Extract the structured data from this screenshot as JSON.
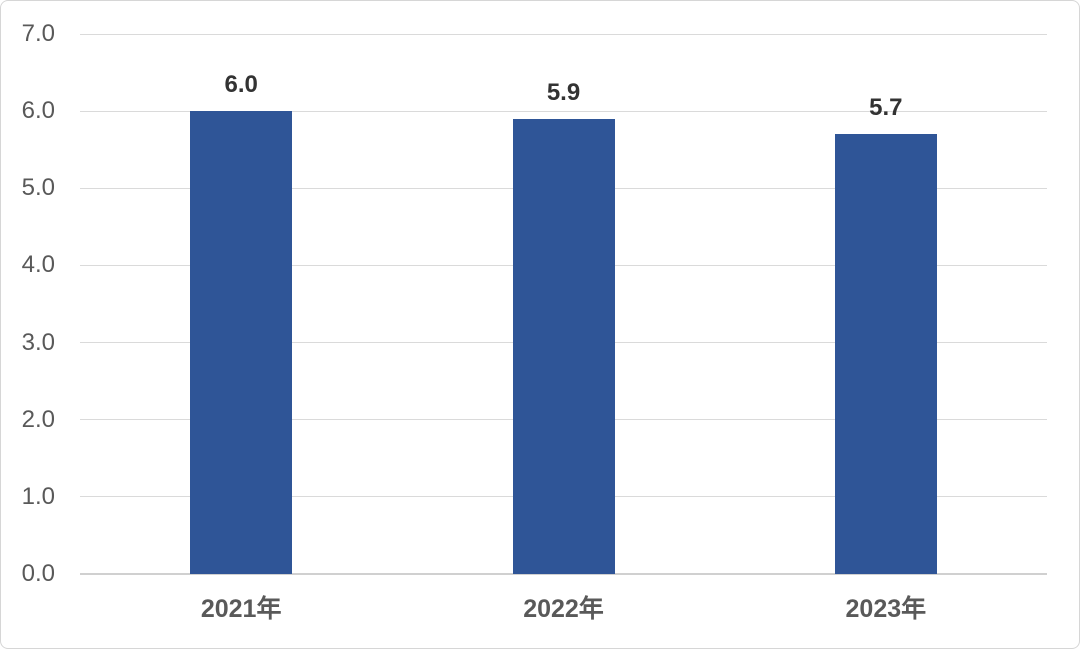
{
  "chart_data": {
    "type": "bar",
    "categories": [
      "2021年",
      "2022年",
      "2023年"
    ],
    "values": [
      6.0,
      5.9,
      5.7
    ],
    "data_labels": [
      "6.0",
      "5.9",
      "5.7"
    ],
    "title": "",
    "xlabel": "",
    "ylabel": "",
    "ylim": [
      0.0,
      7.0
    ],
    "yticks": [
      0,
      1,
      2,
      3,
      4,
      5,
      6,
      7
    ],
    "ytick_labels": [
      "0.0",
      "1.0",
      "2.0",
      "3.0",
      "4.0",
      "5.0",
      "6.0",
      "7.0"
    ],
    "grid": true,
    "legend": false
  },
  "colors": {
    "bar": "#2F5597",
    "gridline": "#DADADA",
    "axis_line": "#D0D0D0",
    "tick_label": "#595959",
    "category_label": "#595959",
    "data_label": "#333333",
    "background": "#FFFFFF",
    "frame_border": "#D6D6D6"
  }
}
